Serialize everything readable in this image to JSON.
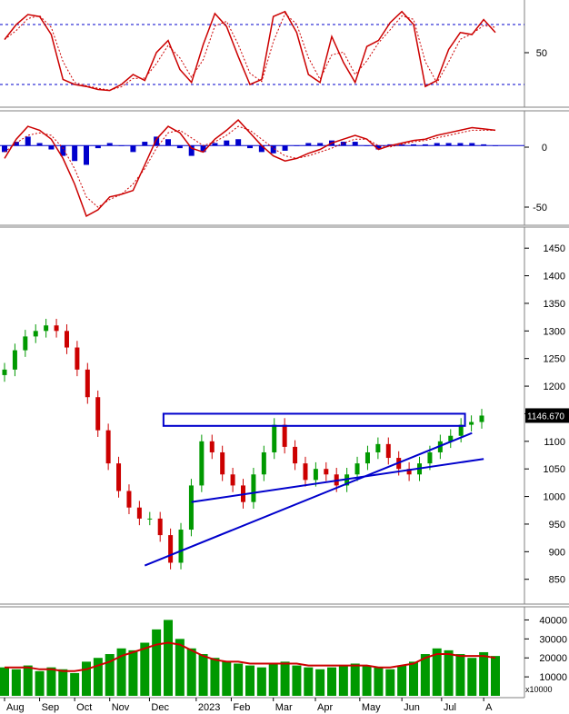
{
  "chart_data": [
    {
      "type": "line",
      "panel": "oscillator",
      "y_tick_labels": [
        "50"
      ],
      "ylim": [
        0,
        100
      ],
      "overbought_level": 80,
      "oversold_level": 20,
      "colors": {
        "main": "#cc0000",
        "signal": "#cc0000",
        "levels": "#0000cc"
      },
      "x": [
        0,
        5,
        10,
        15,
        20,
        25,
        30,
        35,
        40,
        45,
        50,
        55,
        60,
        65,
        70,
        75,
        80,
        85,
        90,
        95,
        100,
        105,
        110,
        115,
        120,
        125,
        130,
        135,
        140,
        145,
        150,
        155,
        160,
        165,
        170,
        175,
        180,
        185,
        190,
        195,
        200,
        205,
        210
      ],
      "main": [
        65,
        80,
        90,
        88,
        70,
        25,
        20,
        18,
        15,
        14,
        20,
        30,
        24,
        52,
        64,
        35,
        22,
        60,
        91,
        78,
        48,
        20,
        25,
        88,
        93,
        72,
        30,
        22,
        68,
        42,
        22,
        58,
        64,
        82,
        93,
        80,
        18,
        24,
        55,
        72,
        70,
        85,
        72
      ]
    },
    {
      "type": "bar",
      "panel": "macd",
      "y_tick_labels": [
        "0",
        "-50"
      ],
      "ylim": [
        -60,
        25
      ],
      "colors": {
        "histogram": "#0000cc",
        "macd": "#cc0000",
        "signal": "#cc0000",
        "zero": "#0000cc"
      },
      "x": [
        0,
        5,
        10,
        15,
        20,
        25,
        30,
        35,
        40,
        45,
        50,
        55,
        60,
        65,
        70,
        75,
        80,
        85,
        90,
        95,
        100,
        105,
        110,
        115,
        120,
        125,
        130,
        135,
        140,
        145,
        150,
        155,
        160,
        165,
        170,
        175,
        180,
        185,
        190,
        195,
        200,
        205,
        210
      ],
      "macd": [
        -10,
        5,
        15,
        12,
        5,
        -10,
        -30,
        -55,
        -50,
        -40,
        -38,
        -35,
        -15,
        5,
        15,
        10,
        -2,
        -5,
        5,
        12,
        20,
        10,
        0,
        -8,
        -12,
        -10,
        -6,
        -3,
        2,
        5,
        8,
        5,
        -3,
        0,
        2,
        4,
        5,
        8,
        10,
        12,
        14,
        13,
        12
      ],
      "signal": [
        -5,
        2,
        8,
        10,
        8,
        -2,
        -18,
        -40,
        -48,
        -42,
        -38,
        -30,
        -18,
        -2,
        10,
        12,
        6,
        0,
        3,
        8,
        15,
        12,
        5,
        -2,
        -8,
        -10,
        -8,
        -5,
        -2,
        2,
        5,
        5,
        0,
        -1,
        1,
        3,
        4,
        6,
        8,
        10,
        12,
        12,
        12
      ],
      "histogram": [
        -5,
        3,
        7,
        2,
        -3,
        -8,
        -12,
        -15,
        -2,
        2,
        0,
        -5,
        3,
        7,
        5,
        -2,
        -8,
        -5,
        2,
        4,
        5,
        -2,
        -5,
        -6,
        -4,
        0,
        2,
        2,
        4,
        3,
        3,
        0,
        -3,
        1,
        1,
        1,
        1,
        2,
        2,
        2,
        2,
        1,
        0
      ]
    },
    {
      "type": "candlestick",
      "panel": "price",
      "y_tick_labels": [
        "1450",
        "1400",
        "1350",
        "1300",
        "1250",
        "1200",
        "1150",
        "1100",
        "1050",
        "1000",
        "950",
        "900",
        "850"
      ],
      "ylim": [
        810,
        1475
      ],
      "last_price_label": "1146.670",
      "colors": {
        "up": "#009900",
        "down": "#cc0000",
        "trendlines": "#0000cc",
        "price_tag": "#000000",
        "price_tag_text": "#ffffff"
      },
      "x_labels": [
        "Aug",
        "Sep",
        "Oct",
        "Nov",
        "Dec",
        "2023",
        "Feb",
        "Mar",
        "Apr",
        "May",
        "Jun",
        "Jul",
        "A"
      ],
      "x_label_positions": [
        0,
        15,
        30,
        45,
        62,
        82,
        97,
        115,
        133,
        152,
        170,
        187,
        205
      ],
      "close": [
        1230,
        1265,
        1290,
        1300,
        1310,
        1300,
        1270,
        1230,
        1180,
        1120,
        1060,
        1010,
        980,
        960,
        960,
        930,
        880,
        940,
        1020,
        1100,
        1080,
        1040,
        1020,
        990,
        1040,
        1080,
        1130,
        1090,
        1060,
        1030,
        1050,
        1040,
        1020,
        1040,
        1060,
        1080,
        1095,
        1070,
        1050,
        1040,
        1060,
        1080,
        1100,
        1110,
        1130,
        1135,
        1146.67
      ],
      "trendlines": [
        {
          "from": [
            60,
            875
          ],
          "to": [
            200,
            1115
          ]
        },
        {
          "from": [
            80,
            990
          ],
          "to": [
            205,
            1068
          ]
        }
      ],
      "resistance_zone": {
        "x_start": 68,
        "x_end": 197,
        "y_low": 1128,
        "y_high": 1150
      }
    },
    {
      "type": "bar",
      "panel": "volume",
      "y_tick_labels": [
        "40000",
        "30000",
        "20000",
        "10000"
      ],
      "ylim": [
        0,
        45000
      ],
      "unit_label": "x10000",
      "colors": {
        "volume": "#009900",
        "ma": "#cc0000"
      },
      "x": [
        0,
        5,
        10,
        15,
        20,
        25,
        30,
        35,
        40,
        45,
        50,
        55,
        60,
        65,
        70,
        75,
        80,
        85,
        90,
        95,
        100,
        105,
        110,
        115,
        120,
        125,
        130,
        135,
        140,
        145,
        150,
        155,
        160,
        165,
        170,
        175,
        180,
        185,
        190,
        195,
        200,
        205,
        210
      ],
      "volume": [
        15000,
        14000,
        16000,
        13000,
        15000,
        14000,
        12000,
        18000,
        20000,
        22000,
        25000,
        24000,
        28000,
        35000,
        40000,
        30000,
        25000,
        22000,
        20000,
        18000,
        17000,
        16000,
        15000,
        17000,
        18000,
        16000,
        15000,
        14000,
        15000,
        16000,
        17000,
        16000,
        15000,
        14000,
        16000,
        18000,
        22000,
        25000,
        24000,
        22000,
        20000,
        23000,
        21000
      ],
      "ma": [
        15000,
        15000,
        15000,
        14000,
        14000,
        13000,
        13000,
        14000,
        16000,
        18000,
        21000,
        23000,
        25000,
        27000,
        28000,
        27000,
        24000,
        21000,
        19000,
        18000,
        18000,
        17000,
        17000,
        17000,
        17000,
        17000,
        16000,
        16000,
        16000,
        16000,
        16000,
        16000,
        15000,
        15000,
        16000,
        17000,
        20000,
        22000,
        22000,
        21000,
        21000,
        21000,
        20000
      ]
    }
  ]
}
